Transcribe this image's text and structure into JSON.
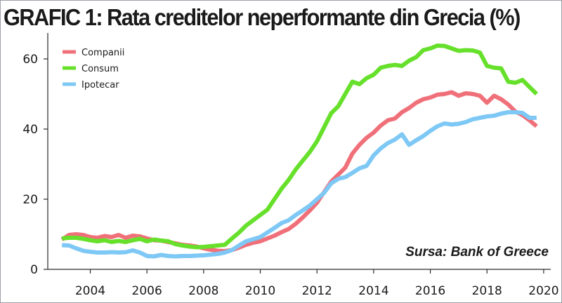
{
  "chart_data": {
    "type": "line",
    "title": "GRAFIC 1: Rata creditelor neperformante din Grecia (%)",
    "source": "Sursa: Bank of Greece",
    "xlabel": "",
    "ylabel": "",
    "xlim": [
      2002.5,
      2020.25
    ],
    "ylim": [
      0,
      67
    ],
    "x_ticks": [
      2004,
      2006,
      2008,
      2010,
      2012,
      2014,
      2016,
      2018,
      2020
    ],
    "y_ticks": [
      0,
      20,
      40,
      60
    ],
    "grid": false,
    "legend_position": "top-left",
    "series": [
      {
        "name": "Companii",
        "color": "#f0707a",
        "points": [
          [
            2003.0,
            8.5
          ],
          [
            2003.25,
            9.8
          ],
          [
            2003.5,
            10.0
          ],
          [
            2003.75,
            9.8
          ],
          [
            2004.0,
            9.2
          ],
          [
            2004.25,
            9.0
          ],
          [
            2004.5,
            9.5
          ],
          [
            2004.75,
            9.2
          ],
          [
            2005.0,
            9.8
          ],
          [
            2005.25,
            9.0
          ],
          [
            2005.5,
            9.6
          ],
          [
            2005.75,
            9.4
          ],
          [
            2006.0,
            8.8
          ],
          [
            2006.25,
            8.3
          ],
          [
            2006.5,
            8.2
          ],
          [
            2006.75,
            7.8
          ],
          [
            2007.0,
            7.4
          ],
          [
            2007.25,
            7.0
          ],
          [
            2007.5,
            6.8
          ],
          [
            2007.75,
            6.5
          ],
          [
            2008.0,
            6.0
          ],
          [
            2008.25,
            5.6
          ],
          [
            2008.5,
            5.3
          ],
          [
            2008.75,
            5.2
          ],
          [
            2009.0,
            5.5
          ],
          [
            2009.25,
            6.2
          ],
          [
            2009.5,
            7.0
          ],
          [
            2009.75,
            7.6
          ],
          [
            2010.0,
            8.0
          ],
          [
            2010.25,
            8.8
          ],
          [
            2010.5,
            9.6
          ],
          [
            2010.75,
            10.6
          ],
          [
            2011.0,
            11.5
          ],
          [
            2011.25,
            13.0
          ],
          [
            2011.5,
            14.8
          ],
          [
            2011.75,
            16.8
          ],
          [
            2012.0,
            19.0
          ],
          [
            2012.25,
            22.0
          ],
          [
            2012.5,
            25.0
          ],
          [
            2012.75,
            27.0
          ],
          [
            2013.0,
            29.0
          ],
          [
            2013.25,
            33.0
          ],
          [
            2013.5,
            35.5
          ],
          [
            2013.75,
            37.5
          ],
          [
            2014.0,
            39.0
          ],
          [
            2014.25,
            41.0
          ],
          [
            2014.5,
            42.5
          ],
          [
            2014.75,
            43.0
          ],
          [
            2015.0,
            44.8
          ],
          [
            2015.25,
            46.0
          ],
          [
            2015.5,
            47.5
          ],
          [
            2015.75,
            48.5
          ],
          [
            2016.0,
            49.0
          ],
          [
            2016.25,
            49.8
          ],
          [
            2016.5,
            50.0
          ],
          [
            2016.75,
            50.5
          ],
          [
            2017.0,
            49.5
          ],
          [
            2017.25,
            50.2
          ],
          [
            2017.5,
            50.0
          ],
          [
            2017.75,
            49.5
          ],
          [
            2018.0,
            47.5
          ],
          [
            2018.25,
            49.5
          ],
          [
            2018.5,
            48.5
          ],
          [
            2018.75,
            47.0
          ],
          [
            2019.0,
            45.0
          ],
          [
            2019.25,
            44.0
          ],
          [
            2019.5,
            42.5
          ],
          [
            2019.75,
            40.8
          ]
        ]
      },
      {
        "name": "Consum",
        "color": "#66e02a",
        "points": [
          [
            2003.0,
            8.8
          ],
          [
            2003.25,
            9.0
          ],
          [
            2003.5,
            9.0
          ],
          [
            2003.75,
            8.7
          ],
          [
            2004.0,
            8.3
          ],
          [
            2004.25,
            8.0
          ],
          [
            2004.5,
            8.3
          ],
          [
            2004.75,
            7.8
          ],
          [
            2005.0,
            8.1
          ],
          [
            2005.25,
            7.8
          ],
          [
            2005.5,
            8.3
          ],
          [
            2005.75,
            8.7
          ],
          [
            2006.0,
            8.0
          ],
          [
            2006.25,
            8.5
          ],
          [
            2006.5,
            8.2
          ],
          [
            2006.75,
            8.0
          ],
          [
            2007.0,
            7.2
          ],
          [
            2007.25,
            6.8
          ],
          [
            2007.5,
            6.5
          ],
          [
            2007.75,
            6.3
          ],
          [
            2008.0,
            6.4
          ],
          [
            2008.25,
            6.6
          ],
          [
            2008.5,
            6.8
          ],
          [
            2008.75,
            7.0
          ],
          [
            2009.0,
            8.8
          ],
          [
            2009.25,
            10.5
          ],
          [
            2009.5,
            12.5
          ],
          [
            2009.75,
            14.0
          ],
          [
            2010.0,
            15.5
          ],
          [
            2010.25,
            17.0
          ],
          [
            2010.5,
            20.0
          ],
          [
            2010.75,
            23.0
          ],
          [
            2011.0,
            25.5
          ],
          [
            2011.25,
            28.5
          ],
          [
            2011.5,
            31.0
          ],
          [
            2011.75,
            33.5
          ],
          [
            2012.0,
            36.5
          ],
          [
            2012.25,
            40.5
          ],
          [
            2012.5,
            44.5
          ],
          [
            2012.75,
            46.5
          ],
          [
            2013.0,
            50.0
          ],
          [
            2013.25,
            53.5
          ],
          [
            2013.5,
            52.8
          ],
          [
            2013.75,
            54.5
          ],
          [
            2014.0,
            55.5
          ],
          [
            2014.25,
            57.5
          ],
          [
            2014.5,
            58.0
          ],
          [
            2014.75,
            58.3
          ],
          [
            2015.0,
            58.0
          ],
          [
            2015.25,
            59.5
          ],
          [
            2015.5,
            60.5
          ],
          [
            2015.75,
            62.5
          ],
          [
            2016.0,
            63.0
          ],
          [
            2016.25,
            63.8
          ],
          [
            2016.5,
            63.7
          ],
          [
            2016.75,
            63.0
          ],
          [
            2017.0,
            62.3
          ],
          [
            2017.25,
            62.5
          ],
          [
            2017.5,
            62.4
          ],
          [
            2017.75,
            61.8
          ],
          [
            2018.0,
            58.0
          ],
          [
            2018.25,
            57.5
          ],
          [
            2018.5,
            57.3
          ],
          [
            2018.75,
            53.5
          ],
          [
            2019.0,
            53.2
          ],
          [
            2019.25,
            54.0
          ],
          [
            2019.5,
            52.0
          ],
          [
            2019.75,
            50.0
          ]
        ]
      },
      {
        "name": "Ipotecar",
        "color": "#7ec8f5",
        "points": [
          [
            2003.0,
            6.9
          ],
          [
            2003.25,
            6.8
          ],
          [
            2003.5,
            6.0
          ],
          [
            2003.75,
            5.3
          ],
          [
            2004.0,
            5.0
          ],
          [
            2004.25,
            4.8
          ],
          [
            2004.5,
            4.8
          ],
          [
            2004.75,
            4.9
          ],
          [
            2005.0,
            4.8
          ],
          [
            2005.25,
            4.9
          ],
          [
            2005.5,
            5.4
          ],
          [
            2005.75,
            4.8
          ],
          [
            2006.0,
            3.8
          ],
          [
            2006.25,
            3.7
          ],
          [
            2006.5,
            4.1
          ],
          [
            2006.75,
            3.8
          ],
          [
            2007.0,
            3.7
          ],
          [
            2007.25,
            3.8
          ],
          [
            2007.5,
            3.8
          ],
          [
            2007.75,
            3.9
          ],
          [
            2008.0,
            4.0
          ],
          [
            2008.25,
            4.2
          ],
          [
            2008.5,
            4.4
          ],
          [
            2008.75,
            4.8
          ],
          [
            2009.0,
            5.5
          ],
          [
            2009.25,
            6.8
          ],
          [
            2009.5,
            8.0
          ],
          [
            2009.75,
            8.6
          ],
          [
            2010.0,
            9.2
          ],
          [
            2010.25,
            10.5
          ],
          [
            2010.5,
            11.8
          ],
          [
            2010.75,
            13.2
          ],
          [
            2011.0,
            14.0
          ],
          [
            2011.25,
            15.5
          ],
          [
            2011.5,
            16.8
          ],
          [
            2011.75,
            18.2
          ],
          [
            2012.0,
            20.0
          ],
          [
            2012.25,
            21.8
          ],
          [
            2012.5,
            24.5
          ],
          [
            2012.75,
            25.8
          ],
          [
            2013.0,
            26.3
          ],
          [
            2013.25,
            27.5
          ],
          [
            2013.5,
            28.8
          ],
          [
            2013.75,
            29.5
          ],
          [
            2014.0,
            32.5
          ],
          [
            2014.25,
            34.5
          ],
          [
            2014.5,
            36.0
          ],
          [
            2014.75,
            37.0
          ],
          [
            2015.0,
            38.5
          ],
          [
            2015.25,
            35.5
          ],
          [
            2015.5,
            36.8
          ],
          [
            2015.75,
            38.0
          ],
          [
            2016.0,
            39.5
          ],
          [
            2016.25,
            40.8
          ],
          [
            2016.5,
            41.6
          ],
          [
            2016.75,
            41.3
          ],
          [
            2017.0,
            41.5
          ],
          [
            2017.25,
            42.0
          ],
          [
            2017.5,
            42.8
          ],
          [
            2017.75,
            43.2
          ],
          [
            2018.0,
            43.6
          ],
          [
            2018.25,
            43.8
          ],
          [
            2018.5,
            44.4
          ],
          [
            2018.75,
            44.8
          ],
          [
            2019.0,
            44.8
          ],
          [
            2019.25,
            44.6
          ],
          [
            2019.5,
            43.2
          ],
          [
            2019.75,
            43.2
          ]
        ]
      }
    ]
  }
}
